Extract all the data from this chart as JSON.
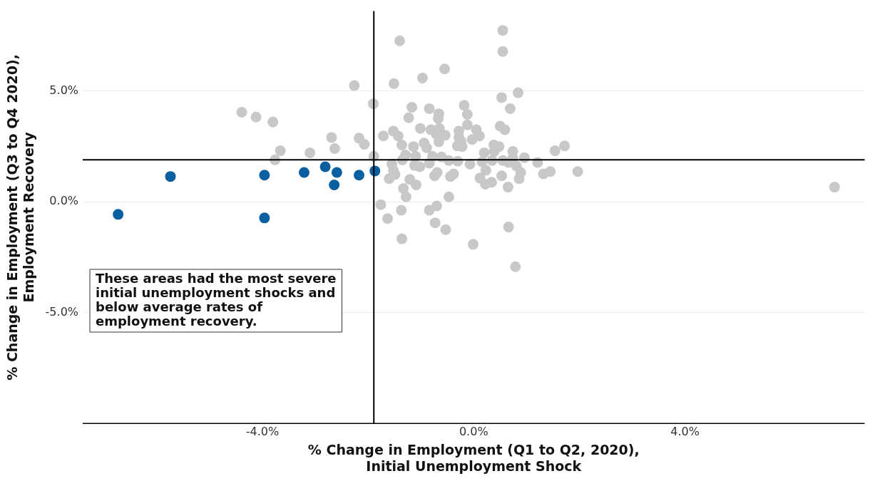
{
  "chart_data": {
    "type": "scatter",
    "xlabel": "% Change in Employment (Q1 to Q2, 2020),\nInitial Unemployment Shock",
    "ylabel": "% Change in Employment (Q3 to Q4 2020),\nEmployment Recovery",
    "xlim": [
      -7.4,
      7.4
    ],
    "ylim": [
      -10,
      8.6
    ],
    "xticks": [
      {
        "value": -4,
        "label": "-4.0%"
      },
      {
        "value": 0,
        "label": "0.0%"
      },
      {
        "value": 4,
        "label": "4.0%"
      }
    ],
    "yticks": [
      {
        "value": -5,
        "label": "-5.0%"
      },
      {
        "value": 0,
        "label": "0.0%"
      },
      {
        "value": 5,
        "label": "5.0%"
      }
    ],
    "grid": "y",
    "legend": false,
    "marker": "circle",
    "ref_lines": [
      {
        "axis": "x",
        "value": -1.89,
        "color": "#000000"
      },
      {
        "axis": "y",
        "value": 1.89,
        "color": "#000000"
      }
    ],
    "annotations": [
      "These areas had the most severe initial unemployment shocks and below average rates of employment recovery."
    ],
    "series": [
      {
        "color": "#c8c8c8",
        "x": [
          -4.39,
          -4.12,
          -3.8,
          -3.66,
          -3.76,
          -3.1,
          -2.69,
          -2.63,
          -2.26,
          -2.17,
          -2.07,
          -1.9,
          -1.89,
          -1.71,
          -1.51,
          -1.4,
          -0.55,
          -0.97,
          -1.17,
          -0.84,
          -0.18,
          -0.66,
          -0.12,
          -1.23,
          -0.67,
          -0.12,
          -1.52,
          -1.43,
          -1.01,
          -0.81,
          -0.65,
          -0.71,
          -0.54,
          -0.28,
          -0.28,
          -0.24,
          -0.03,
          -1.36,
          -1.14,
          -0.94,
          -0.89,
          -0.66,
          -0.31,
          -0.22,
          -1.29,
          -1.1,
          -1.35,
          -0.78,
          -0.61,
          -0.47,
          -0.3,
          -0.07,
          -1.55,
          -1.12,
          -1.02,
          -0.84,
          -1.52,
          -1.49,
          -1.6,
          -1.21,
          -1.09,
          -0.69,
          -0.74,
          -0.38,
          -0.44,
          -1.33,
          -1.28,
          -0.47,
          -1.76,
          -1.37,
          -0.84,
          -0.7,
          -1.63,
          -0.73,
          -0.53,
          -1.36,
          -0.01,
          0.55,
          0.55,
          0.84,
          0.53,
          0.69,
          0.5,
          0.59,
          0.05,
          0.11,
          0.38,
          0.48,
          0.39,
          0.2,
          0.74,
          1.54,
          1.72,
          0.96,
          1.21,
          0.55,
          0.66,
          0.74,
          0.35,
          0.16,
          0.81,
          0.89,
          1.32,
          1.45,
          1.97,
          0.23,
          0.12,
          0.22,
          0.34,
          0.53,
          0.86,
          0.65,
          0.66,
          0.79,
          6.83
        ],
        "values": [
          4.04,
          3.82,
          3.6,
          2.3,
          1.89,
          2.21,
          2.9,
          2.4,
          5.24,
          2.87,
          2.59,
          4.42,
          2.05,
          2.97,
          5.33,
          7.26,
          5.99,
          5.58,
          4.26,
          4.2,
          4.35,
          3.97,
          3.94,
          3.79,
          3.75,
          3.47,
          3.19,
          2.97,
          3.31,
          3.25,
          3.31,
          3.06,
          3.0,
          3.19,
          2.9,
          2.74,
          2.81,
          2.56,
          2.49,
          2.65,
          2.43,
          2.71,
          2.52,
          2.49,
          2.11,
          2.05,
          1.89,
          2.05,
          2.02,
          1.86,
          1.83,
          1.7,
          1.7,
          1.64,
          1.58,
          1.74,
          1.42,
          1.23,
          1.04,
          1.01,
          0.76,
          1.32,
          1.17,
          1.26,
          1.14,
          0.6,
          0.22,
          0.22,
          -0.13,
          -0.38,
          -0.38,
          -0.19,
          -0.76,
          -0.95,
          -1.26,
          -1.67,
          -1.92,
          7.73,
          6.78,
          4.92,
          4.7,
          4.2,
          3.41,
          3.25,
          3.25,
          2.97,
          2.56,
          2.49,
          2.27,
          2.21,
          2.27,
          2.3,
          2.52,
          1.99,
          1.77,
          1.86,
          1.77,
          1.99,
          1.86,
          1.8,
          1.61,
          1.32,
          1.26,
          1.36,
          1.36,
          1.42,
          1.07,
          0.79,
          0.88,
          1.17,
          1.04,
          0.66,
          -1.14,
          -2.93,
          0.66
        ]
      },
      {
        "color": "#0a5fa0",
        "x": [
          -6.73,
          -5.74,
          -3.96,
          -3.96,
          -3.21,
          -2.81,
          -2.59,
          -2.64,
          -2.17,
          -1.87
        ],
        "values": [
          -0.57,
          1.14,
          1.2,
          -0.73,
          1.32,
          1.58,
          1.32,
          0.76,
          1.2,
          1.39
        ]
      }
    ]
  }
}
